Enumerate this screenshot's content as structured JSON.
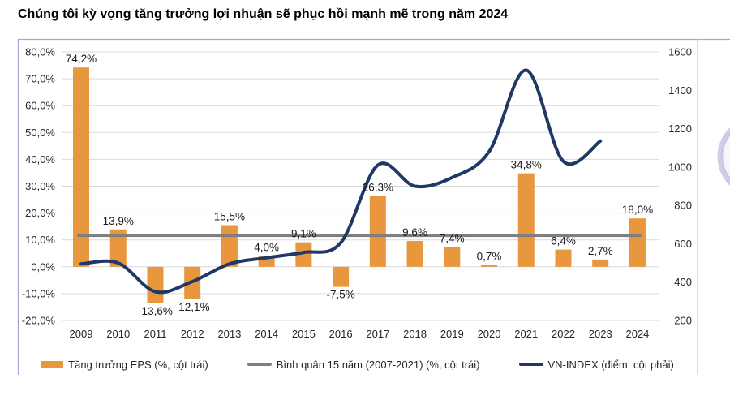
{
  "title": "Chúng tôi kỳ vọng tăng trưởng lợi nhuận sẽ phục hồi mạnh mẽ trong năm 2024",
  "chart_data": {
    "type": "bar+line",
    "title": "Chúng tôi kỳ vọng tăng trưởng lợi nhuận sẽ phục hồi mạnh mẽ trong năm 2024",
    "categories": [
      "2009",
      "2010",
      "2011",
      "2012",
      "2013",
      "2014",
      "2015",
      "2016",
      "2017",
      "2018",
      "2019",
      "2020",
      "2021",
      "2022",
      "2023",
      "2024"
    ],
    "series": [
      {
        "name": "Tăng trưởng EPS (%, cột trái)",
        "type": "bar",
        "axis": "left",
        "values": [
          74.2,
          13.9,
          -13.6,
          -12.1,
          15.5,
          4.0,
          9.1,
          -7.5,
          26.3,
          9.6,
          7.4,
          0.7,
          34.8,
          6.4,
          2.7,
          18.0
        ],
        "labels": [
          "74,2%",
          "13,9%",
          "-13,6%",
          "-12,1%",
          "15,5%",
          "4,0%",
          "9,1%",
          "-7,5%",
          "26,3%",
          "9,6%",
          "7,4%",
          "0,7%",
          "34,8%",
          "6,4%",
          "2,7%",
          "18,0%"
        ],
        "color": "#E8973D"
      },
      {
        "name": "Bình quân 15 năm (2007-2021) (%, cột trái)",
        "type": "line",
        "axis": "left",
        "constant_value": 11.7,
        "color": "#7F7F7F"
      },
      {
        "name": "VN-INDEX (điểm, cột phải)",
        "type": "line",
        "axis": "right",
        "categories": [
          "2009",
          "2010",
          "2011",
          "2012",
          "2013",
          "2014",
          "2015",
          "2016",
          "2017",
          "2018",
          "2019",
          "2020",
          "2021",
          "2022",
          "2023"
        ],
        "values": [
          495,
          500,
          350,
          403,
          495,
          527,
          555,
          605,
          1010,
          900,
          945,
          1080,
          1505,
          1030,
          1135
        ],
        "color": "#1F3864"
      }
    ],
    "left_axis": {
      "unit": "%",
      "min": -20,
      "max": 80,
      "ticks": [
        "80,0%",
        "70,0%",
        "60,0%",
        "50,0%",
        "40,0%",
        "30,0%",
        "20,0%",
        "10,0%",
        "0,0%",
        "-10,0%",
        "-20,0%"
      ]
    },
    "right_axis": {
      "min": 200,
      "max": 1600,
      "ticks": [
        "1600",
        "1400",
        "1200",
        "1000",
        "800",
        "600",
        "400",
        "200"
      ]
    },
    "grid": true,
    "legend_position": "bottom",
    "colors": {
      "bar": "#E8973D",
      "average_line": "#7F7F7F",
      "vnindex_line": "#1F3864",
      "gridline": "#D9D9D9",
      "axis_text": "#262626",
      "border": "#A8A4D6"
    }
  }
}
